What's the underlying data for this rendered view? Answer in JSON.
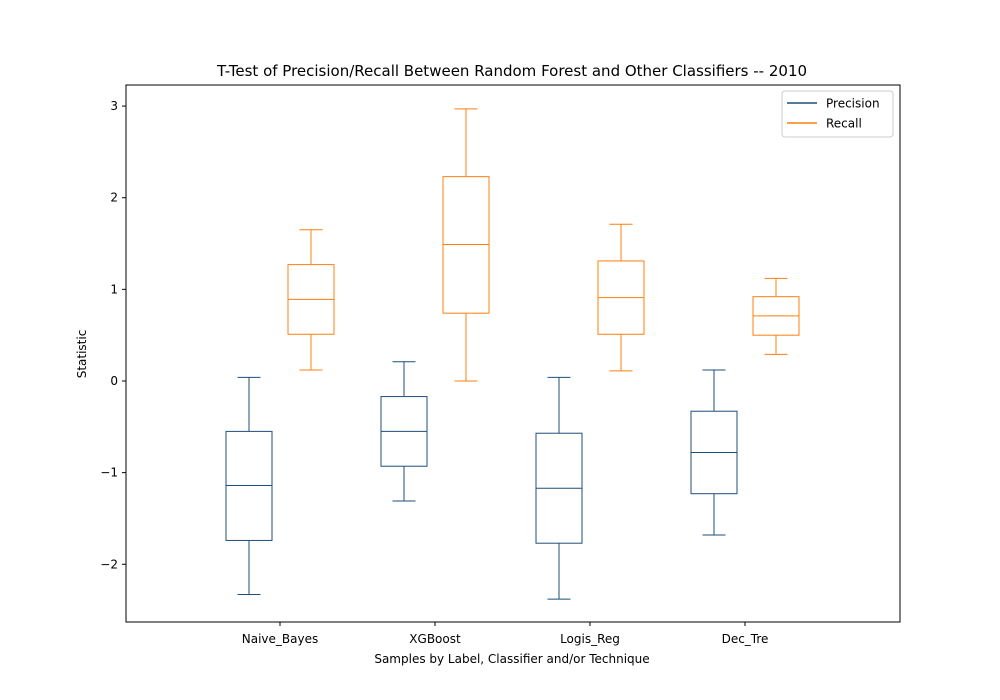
{
  "chart_data": {
    "type": "boxplot",
    "title": "T-Test of Precision/Recall Between Random Forest and Other Classifiers -- 2010",
    "xlabel": "Samples by Label, Classifier and/or Technique",
    "ylabel": "Statistic",
    "categories": [
      "Naive_Bayes",
      "XGBoost",
      "Logis_Reg",
      "Dec_Tre"
    ],
    "ylim": [
      -2.63,
      3.23
    ],
    "yticks": [
      -2,
      -1,
      0,
      1,
      2,
      3
    ],
    "ytick_labels": [
      "−2",
      "−1",
      "0",
      "1",
      "2",
      "3"
    ],
    "grid": false,
    "legend_position": "top-right",
    "series": [
      {
        "name": "Precision",
        "color": "#1f4e79",
        "boxes": [
          {
            "whislo": -2.33,
            "q1": -1.74,
            "med": -1.14,
            "q3": -0.55,
            "whishi": 0.04
          },
          {
            "whislo": -1.31,
            "q1": -0.93,
            "med": -0.55,
            "q3": -0.17,
            "whishi": 0.21
          },
          {
            "whislo": -2.38,
            "q1": -1.77,
            "med": -1.17,
            "q3": -0.57,
            "whishi": 0.04
          },
          {
            "whislo": -1.68,
            "q1": -1.23,
            "med": -0.78,
            "q3": -0.33,
            "whishi": 0.12
          }
        ]
      },
      {
        "name": "Recall",
        "color": "#ff7f0e",
        "boxes": [
          {
            "whislo": 0.12,
            "q1": 0.51,
            "med": 0.89,
            "q3": 1.27,
            "whishi": 1.65
          },
          {
            "whislo": 0.0,
            "q1": 0.74,
            "med": 1.49,
            "q3": 2.23,
            "whishi": 2.97
          },
          {
            "whislo": 0.11,
            "q1": 0.51,
            "med": 0.91,
            "q3": 1.31,
            "whishi": 1.71
          },
          {
            "whislo": 0.29,
            "q1": 0.5,
            "med": 0.71,
            "q3": 0.92,
            "whishi": 1.12
          }
        ]
      }
    ]
  }
}
